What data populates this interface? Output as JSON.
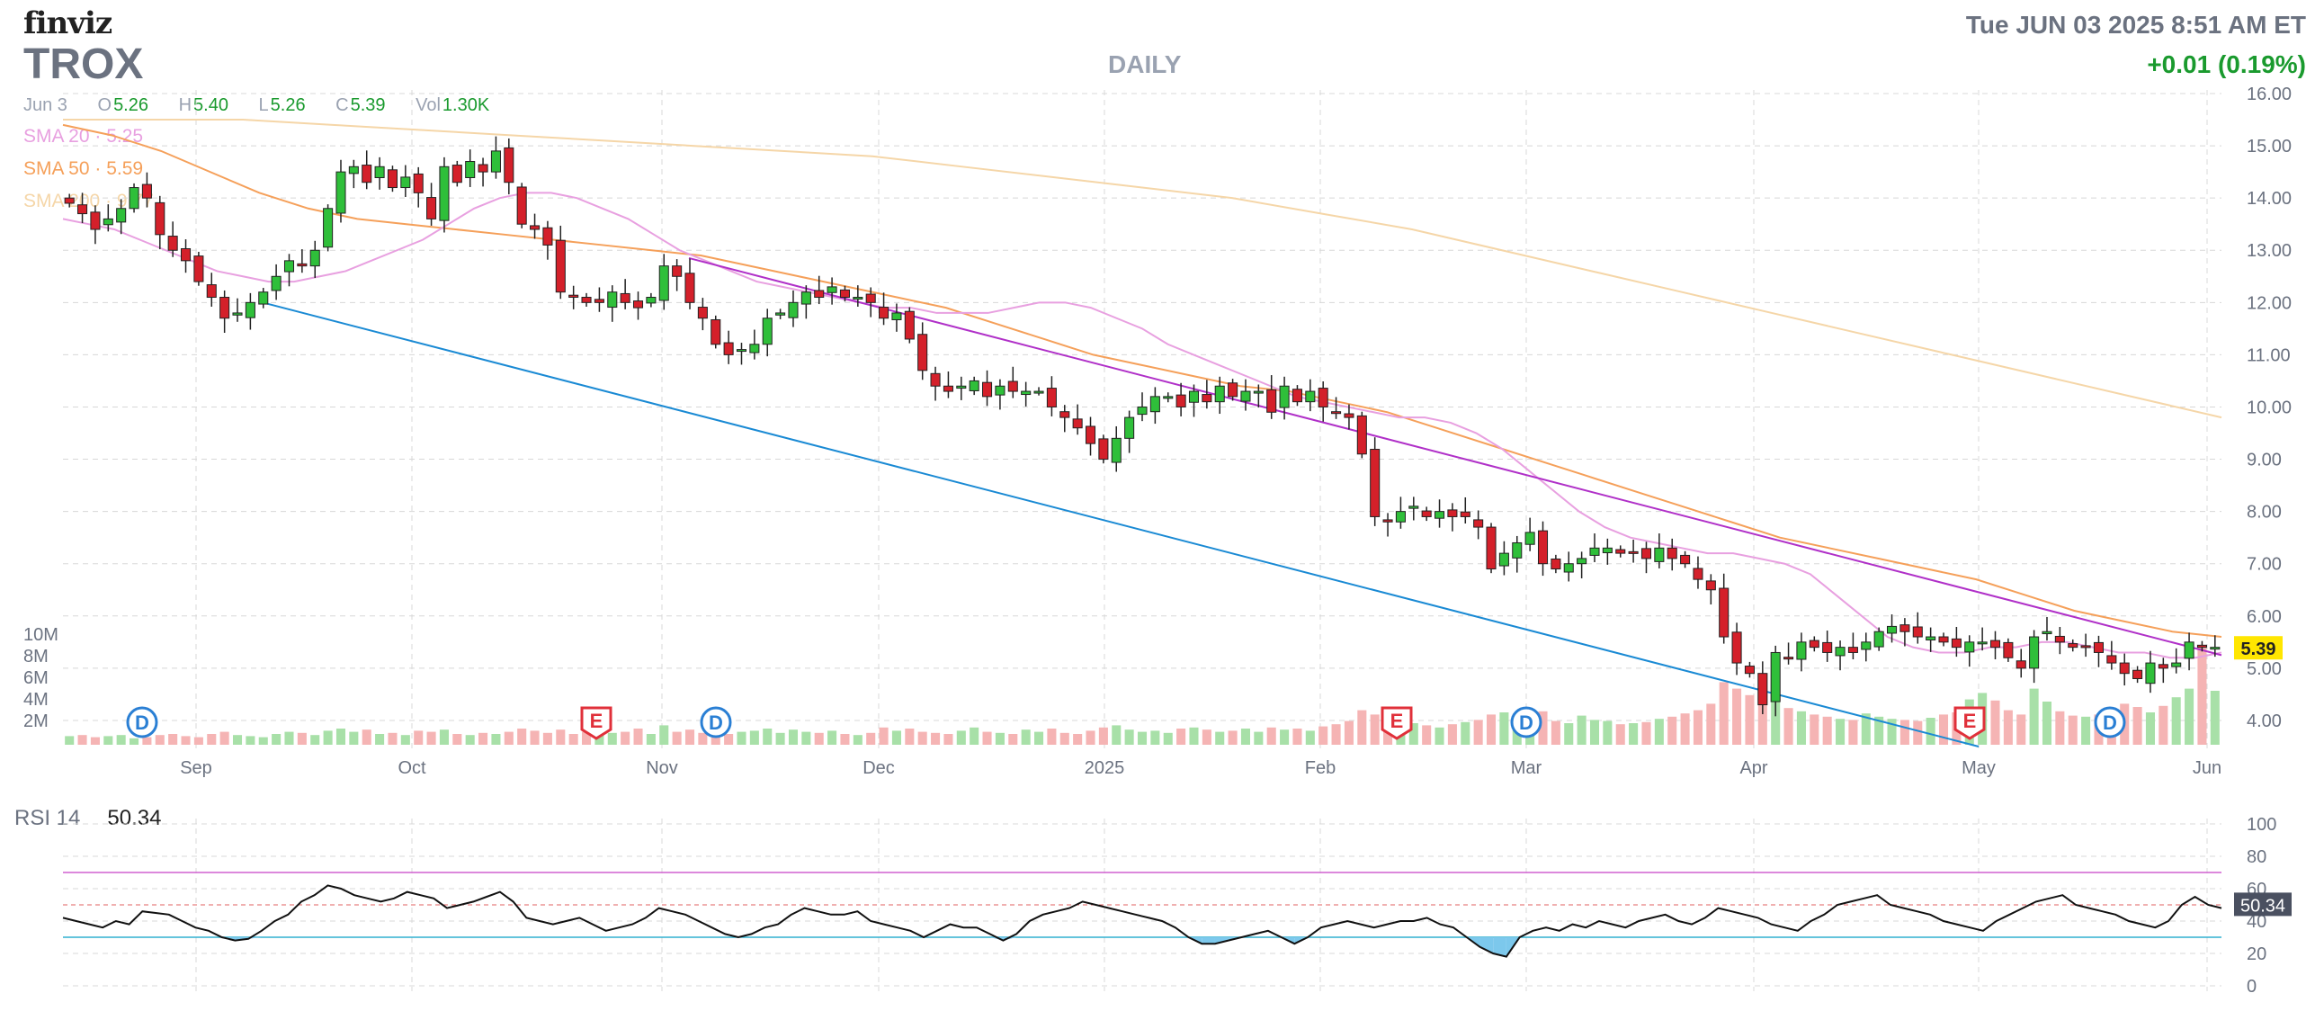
{
  "header": {
    "logo": "finviz",
    "ticker": "TROX",
    "period": "DAILY",
    "datetime": "Tue JUN 03 2025 8:51 AM ET",
    "change": "+0.01 (0.19%)"
  },
  "ohlc": {
    "date": "Jun 3",
    "o_label": "O",
    "o": "5.26",
    "h_label": "H",
    "h": "5.40",
    "l_label": "L",
    "l": "5.26",
    "c_label": "C",
    "c": "5.39",
    "vol_label": "Vol",
    "vol": "1.30K"
  },
  "sma_legend": [
    {
      "label": "SMA 20",
      "value": "5.25",
      "color": "#e8a0e0"
    },
    {
      "label": "SMA 50",
      "value": "5.59",
      "color": "#f5a05a"
    },
    {
      "label": "SMA 200",
      "value": "9.77",
      "color": "#f5d6a8"
    }
  ],
  "colors": {
    "up": "#2fbf3a",
    "down": "#d4202a",
    "vol_up": "#a8e0a8",
    "vol_down": "#f5b4b4",
    "sma20": "#e8a0e0",
    "sma50": "#f5a05a",
    "sma200": "#f5d6a8",
    "trend_upper": "#b030c8",
    "trend_lower": "#1a8ad4",
    "price_badge": "#ffe600",
    "rsi_badge": "#4a5060"
  },
  "chart_data": {
    "type": "candlestick",
    "price_axis": {
      "ylim": [
        3.5,
        16.0
      ],
      "ticks": [
        "16.00",
        "15.00",
        "14.00",
        "13.00",
        "12.00",
        "11.00",
        "10.00",
        "9.00",
        "8.00",
        "7.00",
        "6.00",
        "5.00",
        "4.00"
      ]
    },
    "volume_axis": {
      "ticks": [
        "10M",
        "8M",
        "6M",
        "4M",
        "2M"
      ]
    },
    "x_axis": {
      "labels": [
        "Sep",
        "Oct",
        "Nov",
        "Dec",
        "2025",
        "Feb",
        "Mar",
        "Apr",
        "May",
        "Jun"
      ]
    },
    "last_price": "5.39",
    "closes": [
      13.9,
      13.7,
      13.4,
      13.6,
      13.8,
      14.2,
      14.0,
      13.3,
      13.0,
      12.8,
      12.4,
      12.1,
      11.7,
      11.8,
      12.0,
      12.2,
      12.5,
      12.8,
      12.7,
      13.0,
      13.8,
      14.5,
      14.6,
      14.3,
      14.6,
      14.2,
      14.4,
      14.1,
      13.6,
      14.6,
      14.3,
      14.7,
      14.5,
      14.9,
      14.3,
      13.5,
      13.4,
      13.1,
      12.2,
      12.1,
      12.0,
      12.0,
      12.2,
      12.0,
      11.9,
      12.1,
      12.7,
      12.5,
      12.0,
      11.7,
      11.2,
      11.0,
      11.1,
      11.2,
      11.7,
      11.8,
      12.0,
      12.2,
      12.1,
      12.3,
      12.1,
      12.1,
      12.0,
      11.7,
      11.8,
      11.3,
      10.7,
      10.4,
      10.3,
      10.4,
      10.5,
      10.2,
      10.4,
      10.3,
      10.3,
      10.3,
      10.0,
      9.8,
      9.6,
      9.3,
      9.0,
      9.4,
      9.8,
      10.0,
      10.2,
      10.2,
      10.0,
      10.3,
      10.1,
      10.4,
      10.2,
      10.3,
      10.3,
      9.9,
      10.4,
      10.1,
      10.3,
      10.0,
      9.9,
      9.8,
      9.1,
      7.9,
      7.8,
      8.0,
      8.1,
      7.9,
      8.0,
      7.9,
      7.9,
      7.7,
      6.9,
      7.2,
      7.4,
      7.6,
      7.0,
      6.9,
      7.0,
      7.1,
      7.3,
      7.3,
      7.2,
      7.2,
      7.1,
      7.3,
      7.1,
      7.0,
      6.7,
      6.5,
      5.6,
      5.1,
      4.9,
      4.3,
      5.3,
      5.2,
      5.5,
      5.4,
      5.3,
      5.4,
      5.3,
      5.5,
      5.7,
      5.8,
      5.7,
      5.6,
      5.6,
      5.5,
      5.4,
      5.5,
      5.5,
      5.4,
      5.2,
      5.0,
      5.6,
      5.7,
      5.5,
      5.4,
      5.4,
      5.3,
      5.1,
      4.9,
      4.8,
      5.1,
      5.0,
      5.1,
      5.5,
      5.4,
      5.4
    ],
    "volumes": [
      0.8,
      0.9,
      0.7,
      0.8,
      0.9,
      0.6,
      0.7,
      0.9,
      1.0,
      0.8,
      0.7,
      1.0,
      1.2,
      0.9,
      0.8,
      0.7,
      1.0,
      1.2,
      1.1,
      0.9,
      1.3,
      1.5,
      1.2,
      1.4,
      1.0,
      1.1,
      0.9,
      1.3,
      1.2,
      1.4,
      1.0,
      0.9,
      1.1,
      1.0,
      1.2,
      1.5,
      1.3,
      1.1,
      1.4,
      1.0,
      1.2,
      0.9,
      1.1,
      1.2,
      1.5,
      1.0,
      1.8,
      1.2,
      1.4,
      1.1,
      0.9,
      1.0,
      1.2,
      1.3,
      1.5,
      1.1,
      1.4,
      1.2,
      1.1,
      1.3,
      1.0,
      0.9,
      1.1,
      1.6,
      1.3,
      1.5,
      1.2,
      1.1,
      1.0,
      1.3,
      1.6,
      1.2,
      1.1,
      1.0,
      1.4,
      1.2,
      1.5,
      1.1,
      1.0,
      1.3,
      1.6,
      1.8,
      1.4,
      1.2,
      1.3,
      1.1,
      1.5,
      1.6,
      1.4,
      1.2,
      1.3,
      1.5,
      1.2,
      1.6,
      1.4,
      1.5,
      1.3,
      1.7,
      1.9,
      2.2,
      3.2,
      2.8,
      1.9,
      1.7,
      2.0,
      1.8,
      1.6,
      1.9,
      2.1,
      2.3,
      2.8,
      3.0,
      2.6,
      2.4,
      3.1,
      2.2,
      2.0,
      2.7,
      2.3,
      2.2,
      1.9,
      2.0,
      2.1,
      2.4,
      2.6,
      2.9,
      3.2,
      3.8,
      5.8,
      5.2,
      4.6,
      6.2,
      4.0,
      3.4,
      3.1,
      2.8,
      2.6,
      2.4,
      2.3,
      2.9,
      2.6,
      2.4,
      2.3,
      2.2,
      2.5,
      2.8,
      3.0,
      4.2,
      4.8,
      4.1,
      3.2,
      2.8,
      5.2,
      4.0,
      3.1,
      2.7,
      2.6,
      2.8,
      3.2,
      3.8,
      3.5,
      3.0,
      3.6,
      4.4,
      5.2,
      9.0,
      5.0
    ],
    "sma20": [
      13.6,
      13.5,
      13.4,
      13.2,
      13.0,
      12.8,
      12.6,
      12.5,
      12.4,
      12.4,
      12.5,
      12.6,
      12.8,
      13.0,
      13.2,
      13.5,
      13.8,
      14.0,
      14.1,
      14.1,
      14.0,
      13.8,
      13.6,
      13.3,
      13.0,
      12.8,
      12.6,
      12.4,
      12.3,
      12.2,
      12.1,
      12.0,
      11.9,
      11.9,
      11.8,
      11.8,
      11.8,
      11.9,
      12.0,
      12.0,
      11.9,
      11.7,
      11.5,
      11.2,
      11.0,
      10.8,
      10.6,
      10.4,
      10.2,
      10.1,
      10.0,
      9.9,
      9.8,
      9.8,
      9.7,
      9.5,
      9.2,
      8.8,
      8.4,
      8.0,
      7.7,
      7.5,
      7.4,
      7.3,
      7.2,
      7.2,
      7.1,
      7.0,
      6.8,
      6.4,
      6.0,
      5.6,
      5.4,
      5.3,
      5.3,
      5.4,
      5.4,
      5.5,
      5.5,
      5.4,
      5.3,
      5.3,
      5.2,
      5.2,
      5.3
    ],
    "sma50": [
      15.4,
      15.2,
      14.9,
      14.5,
      14.1,
      13.8,
      13.6,
      13.5,
      13.4,
      13.3,
      13.2,
      13.1,
      13.0,
      12.9,
      12.7,
      12.5,
      12.3,
      12.1,
      11.9,
      11.6,
      11.3,
      11.0,
      10.8,
      10.6,
      10.4,
      10.3,
      10.1,
      9.9,
      9.6,
      9.3,
      9.0,
      8.7,
      8.4,
      8.1,
      7.8,
      7.5,
      7.3,
      7.1,
      6.9,
      6.7,
      6.4,
      6.1,
      5.9,
      5.7,
      5.6
    ],
    "sma200": [
      15.5,
      15.5,
      15.5,
      15.4,
      15.3,
      15.2,
      15.1,
      15.0,
      14.9,
      14.8,
      14.6,
      14.4,
      14.2,
      14.0,
      13.7,
      13.4,
      13.0,
      12.6,
      12.2,
      11.8,
      11.4,
      11.0,
      10.6,
      10.2,
      9.8
    ],
    "trendlines": [
      {
        "name": "upper",
        "from": [
          "Nov 1",
          12.85
        ],
        "to": [
          "Jun 3",
          5.25
        ]
      },
      {
        "name": "lower",
        "from": [
          "Sep 10",
          12.0
        ],
        "to": [
          "May 1",
          3.5
        ]
      }
    ],
    "events": [
      "D",
      "E",
      "D",
      "E",
      "D",
      "E",
      "D"
    ],
    "rsi": {
      "label": "RSI 14",
      "value": "50.34",
      "ylim": [
        0,
        100
      ],
      "ticks": [
        "100",
        "80",
        "60",
        "40",
        "20",
        "0"
      ],
      "overbought": 70,
      "oversold": 30,
      "values": [
        42,
        40,
        38,
        36,
        40,
        38,
        46,
        45,
        44,
        40,
        36,
        34,
        30,
        28,
        29,
        34,
        40,
        44,
        52,
        56,
        62,
        60,
        56,
        54,
        52,
        54,
        58,
        56,
        54,
        48,
        50,
        52,
        55,
        58,
        52,
        42,
        40,
        38,
        40,
        42,
        38,
        34,
        36,
        38,
        42,
        48,
        46,
        44,
        40,
        36,
        32,
        30,
        32,
        36,
        38,
        44,
        48,
        46,
        44,
        44,
        46,
        40,
        38,
        36,
        34,
        30,
        34,
        38,
        36,
        36,
        32,
        28,
        32,
        40,
        44,
        46,
        48,
        52,
        50,
        48,
        46,
        44,
        42,
        40,
        36,
        30,
        26,
        26,
        28,
        30,
        32,
        34,
        30,
        26,
        30,
        36,
        38,
        40,
        38,
        36,
        38,
        40,
        40,
        42,
        38,
        36,
        30,
        24,
        20,
        18,
        30,
        34,
        36,
        34,
        38,
        36,
        40,
        38,
        36,
        40,
        42,
        44,
        40,
        38,
        42,
        48,
        46,
        44,
        42,
        38,
        36,
        34,
        40,
        44,
        50,
        52,
        54,
        56,
        50,
        48,
        46,
        44,
        40,
        38,
        36,
        34,
        40,
        44,
        48,
        52,
        54,
        56,
        50,
        48,
        46,
        44,
        40,
        38,
        36,
        40,
        50,
        55,
        50,
        48
      ]
    }
  }
}
